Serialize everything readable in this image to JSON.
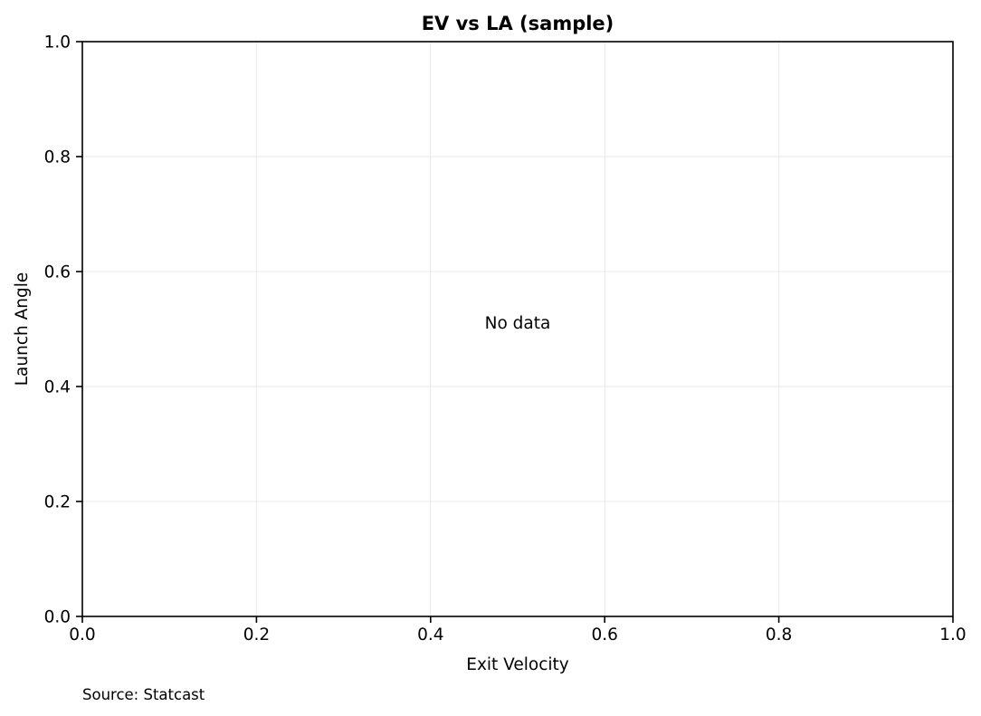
{
  "chart_data": {
    "type": "scatter",
    "title": "EV vs LA (sample)",
    "xlabel": "Exit Velocity",
    "ylabel": "Launch Angle",
    "xlim": [
      0.0,
      1.0
    ],
    "ylim": [
      0.0,
      1.0
    ],
    "x_ticks": [
      "0.0",
      "0.2",
      "0.4",
      "0.6",
      "0.8",
      "1.0"
    ],
    "y_ticks": [
      "0.0",
      "0.2",
      "0.4",
      "0.6",
      "0.8",
      "1.0"
    ],
    "grid": true,
    "series": [],
    "annotation": "No data",
    "source_note": "Source: Statcast"
  }
}
